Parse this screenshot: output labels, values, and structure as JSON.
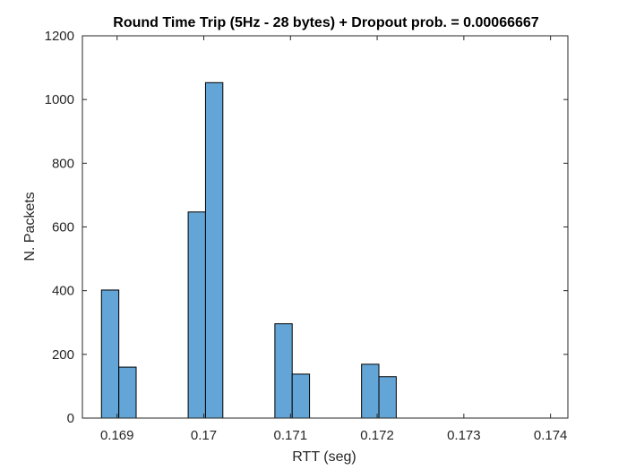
{
  "chart_data": {
    "type": "bar",
    "title": "Round Time Trip (5Hz - 28 bytes) + Dropout prob. = 0.00066667",
    "xlabel": "RTT (seg)",
    "ylabel": "N. Packets",
    "xlim": [
      0.1686,
      0.1742
    ],
    "ylim": [
      0,
      1200
    ],
    "x_ticks": [
      0.169,
      0.17,
      0.171,
      0.172,
      0.173,
      0.174
    ],
    "x_tick_labels": [
      "0.169",
      "0.17",
      "0.171",
      "0.172",
      "0.173",
      "0.174"
    ],
    "y_ticks": [
      0,
      200,
      400,
      600,
      800,
      1000,
      1200
    ],
    "y_tick_labels": [
      "0",
      "200",
      "400",
      "600",
      "800",
      "1000",
      "1200"
    ],
    "grid": false,
    "bar_color": "#63A5D6",
    "bar_edge_color": "#000000",
    "bins": [
      {
        "x0": 0.16882,
        "x1": 0.16902,
        "count": 402
      },
      {
        "x0": 0.16902,
        "x1": 0.16922,
        "count": 160
      },
      {
        "x0": 0.16982,
        "x1": 0.17002,
        "count": 647
      },
      {
        "x0": 0.17002,
        "x1": 0.17022,
        "count": 1053
      },
      {
        "x0": 0.17082,
        "x1": 0.17102,
        "count": 296
      },
      {
        "x0": 0.17102,
        "x1": 0.17122,
        "count": 138
      },
      {
        "x0": 0.17182,
        "x1": 0.17202,
        "count": 169
      },
      {
        "x0": 0.17202,
        "x1": 0.17222,
        "count": 130
      },
      {
        "x0": 0.17222,
        "x1": 0.17402,
        "count": 0
      }
    ]
  }
}
